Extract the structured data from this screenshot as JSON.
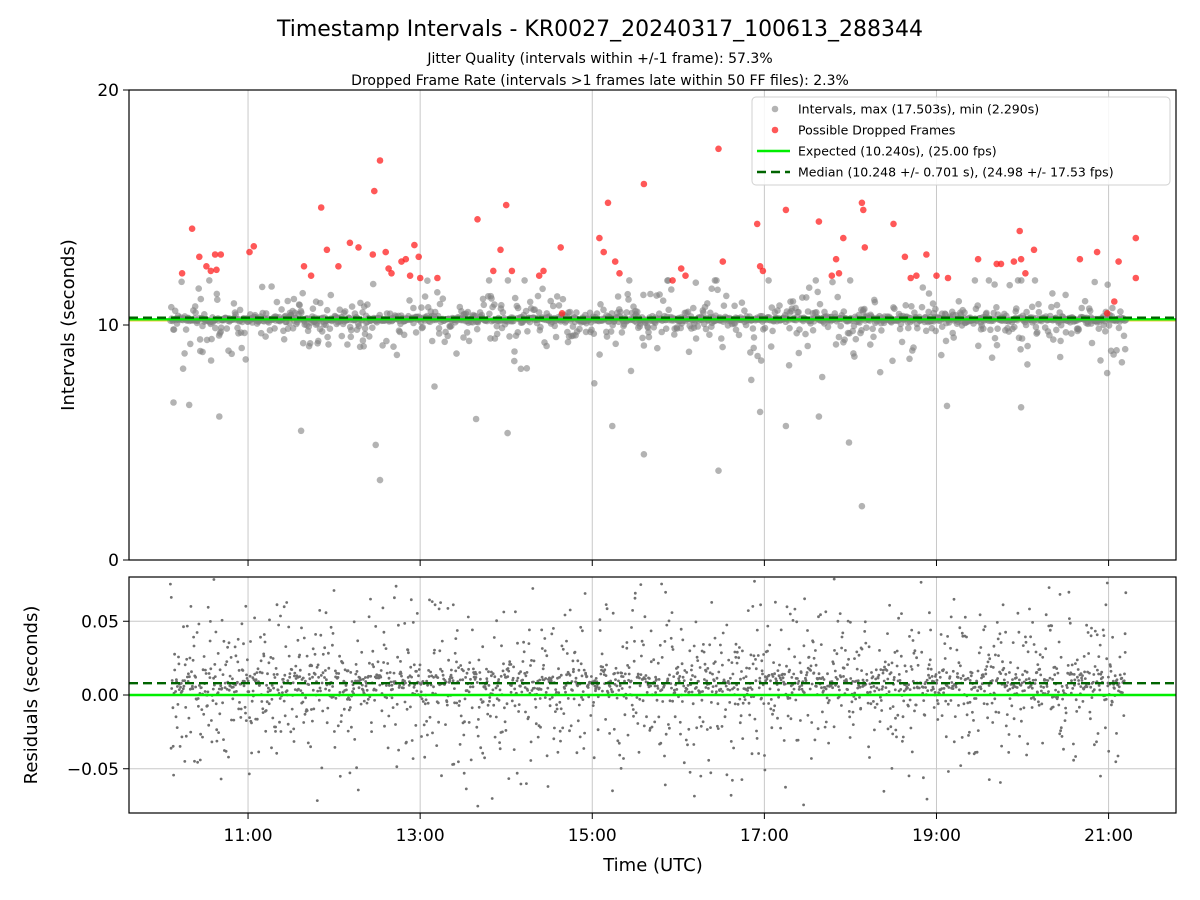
{
  "title": "Timestamp Intervals - KR0027_20240317_100613_288344",
  "subtitle_1": "Jitter Quality (intervals within +/-1 frame): 57.3%",
  "subtitle_2": "Dropped Frame Rate (intervals >1 frames late within 50 FF files): 2.3%",
  "colors": {
    "intervals": "#808080",
    "dropped": "#ff2020",
    "expected": "#00ee00",
    "median": "#006400",
    "band": "#f5c518",
    "grid": "#c8c8c8"
  },
  "chart_data": [
    {
      "type": "scatter",
      "panel": "intervals",
      "xlabel": "",
      "ylabel": "Intervals (seconds)",
      "xlim": [
        "09:37",
        "21:47"
      ],
      "ylim": [
        0,
        20
      ],
      "y_ticks": [
        "0",
        "10",
        "20"
      ],
      "x_ticks": [
        "11:00",
        "13:00",
        "15:00",
        "17:00",
        "19:00",
        "21:00"
      ],
      "grid": "vertical",
      "legend_position": "top-right",
      "legend": [
        "Intervals, max (17.503s), min (2.290s)",
        "Possible Dropped Frames",
        "Expected (10.240s), (25.00 fps)",
        "Median (10.248 +/- 0.701 s), (24.98 +/- 17.53 fps)"
      ],
      "series": [
        {
          "name": "Intervals, max (17.503s), min (2.290s)",
          "summary": {
            "max": 17.503,
            "min": 2.29,
            "count_approx": 3900,
            "start": "10:06",
            "end": "21:12",
            "typical_value": 10.24
          }
        },
        {
          "name": "Possible Dropped Frames",
          "points": [
            [
              "10:14",
              12.2
            ],
            [
              "10:21",
              14.1
            ],
            [
              "10:26",
              12.9
            ],
            [
              "10:31",
              12.5
            ],
            [
              "10:34",
              12.3
            ],
            [
              "10:37",
              13.0
            ],
            [
              "10:38",
              12.35
            ],
            [
              "10:41",
              13.0
            ],
            [
              "11:01",
              13.1
            ],
            [
              "11:04",
              13.35
            ],
            [
              "11:39",
              12.5
            ],
            [
              "11:44",
              12.1
            ],
            [
              "11:51",
              15.0
            ],
            [
              "11:55",
              13.2
            ],
            [
              "12:03",
              12.5
            ],
            [
              "12:11",
              13.5
            ],
            [
              "12:17",
              13.3
            ],
            [
              "12:27",
              13.0
            ],
            [
              "12:28",
              15.7
            ],
            [
              "12:32",
              17.0
            ],
            [
              "12:36",
              13.1
            ],
            [
              "12:38",
              12.4
            ],
            [
              "12:40",
              12.2
            ],
            [
              "12:47",
              12.7
            ],
            [
              "12:50",
              12.8
            ],
            [
              "12:53",
              12.1
            ],
            [
              "12:56",
              13.4
            ],
            [
              "12:59",
              12.9
            ],
            [
              "13:00",
              12.0
            ],
            [
              "13:12",
              12.0
            ],
            [
              "13:40",
              14.5
            ],
            [
              "13:51",
              12.3
            ],
            [
              "13:56",
              13.2
            ],
            [
              "14:00",
              15.1
            ],
            [
              "14:04",
              12.3
            ],
            [
              "14:23",
              12.1
            ],
            [
              "14:26",
              12.3
            ],
            [
              "14:38",
              13.3
            ],
            [
              "14:39",
              10.5
            ],
            [
              "15:05",
              13.7
            ],
            [
              "15:08",
              13.1
            ],
            [
              "15:11",
              15.2
            ],
            [
              "15:16",
              12.7
            ],
            [
              "15:19",
              12.2
            ],
            [
              "15:36",
              16.0
            ],
            [
              "15:56",
              11.9
            ],
            [
              "16:02",
              12.4
            ],
            [
              "16:05",
              12.1
            ],
            [
              "16:28",
              17.5
            ],
            [
              "16:31",
              12.7
            ],
            [
              "16:55",
              14.3
            ],
            [
              "16:57",
              12.5
            ],
            [
              "16:59",
              12.3
            ],
            [
              "17:15",
              14.9
            ],
            [
              "17:38",
              14.4
            ],
            [
              "17:47",
              12.1
            ],
            [
              "17:50",
              12.8
            ],
            [
              "17:52",
              12.2
            ],
            [
              "17:55",
              13.7
            ],
            [
              "18:08",
              15.2
            ],
            [
              "18:09",
              14.9
            ],
            [
              "18:10",
              13.3
            ],
            [
              "18:30",
              14.3
            ],
            [
              "18:38",
              12.9
            ],
            [
              "18:42",
              12.0
            ],
            [
              "18:46",
              12.1
            ],
            [
              "18:53",
              13.0
            ],
            [
              "19:00",
              12.1
            ],
            [
              "19:08",
              12.0
            ],
            [
              "19:29",
              12.8
            ],
            [
              "19:42",
              12.6
            ],
            [
              "19:45",
              12.6
            ],
            [
              "19:54",
              12.7
            ],
            [
              "19:58",
              14.0
            ],
            [
              "19:59",
              12.8
            ],
            [
              "20:02",
              12.2
            ],
            [
              "20:08",
              13.2
            ],
            [
              "20:40",
              12.8
            ],
            [
              "20:52",
              13.1
            ],
            [
              "20:59",
              10.5
            ],
            [
              "21:04",
              11.0
            ],
            [
              "21:07",
              12.7
            ],
            [
              "21:19",
              12.0
            ],
            [
              "21:19",
              13.7
            ]
          ]
        },
        {
          "name": "Expected (10.240s), (25.00 fps)",
          "value": 10.24
        },
        {
          "name": "Median (10.248 +/- 0.701 s), (24.98 +/- 17.53 fps)",
          "value": 10.248
        }
      ]
    },
    {
      "type": "scatter",
      "panel": "residuals",
      "xlabel": "Time (UTC)",
      "ylabel": "Residuals (seconds)",
      "xlim": [
        "09:37",
        "21:47"
      ],
      "ylim": [
        -0.08,
        0.08
      ],
      "y_ticks": [
        "−0.05",
        "0.00",
        "0.05"
      ],
      "x_ticks": [
        "11:00",
        "13:00",
        "15:00",
        "17:00",
        "19:00",
        "21:00"
      ],
      "grid": "both",
      "series": [
        {
          "name": "Residuals",
          "summary": {
            "count_approx": 3900,
            "start": "10:06",
            "end": "21:12",
            "center": 0.008,
            "spread": 0.03
          }
        },
        {
          "name": "Expected",
          "value": 0.0
        },
        {
          "name": "Median",
          "value": 0.008
        }
      ]
    }
  ]
}
